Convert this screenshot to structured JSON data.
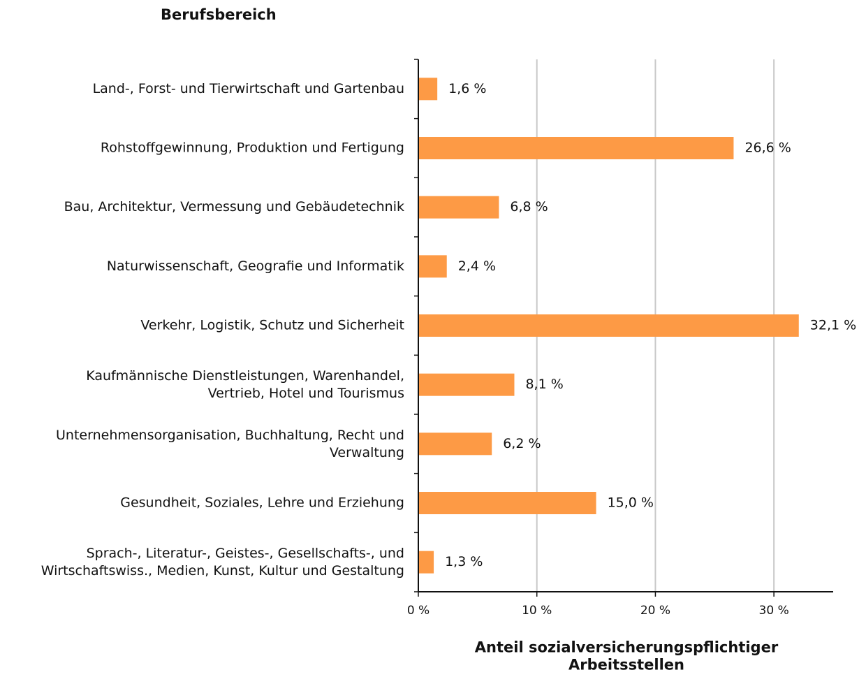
{
  "chart_data": {
    "type": "bar",
    "orientation": "horizontal",
    "title": "Berufsbereich",
    "x_label": "Anteil sozialversicherungspflichtiger\nArbeitsstellen",
    "categories": [
      "Land-, Forst- und Tierwirtschaft und Gartenbau",
      "Rohstoffgewinnung, Produktion und Fertigung",
      "Bau, Architektur, Vermessung und Gebäudetechnik",
      "Naturwissenschaft, Geografie und Informatik",
      "Verkehr, Logistik, Schutz und Sicherheit",
      "Kaufmännische Dienstleistungen, Warenhandel,\nVertrieb, Hotel und Tourismus",
      "Unternehmensorganisation, Buchhaltung, Recht und\nVerwaltung",
      "Gesundheit, Soziales, Lehre und Erziehung",
      "Sprach-, Literatur-, Geistes-, Gesellschafts-, und\nWirtschaftswiss., Medien, Kunst, Kultur und Gestaltung"
    ],
    "values": [
      1.6,
      26.6,
      6.8,
      2.4,
      32.1,
      8.1,
      6.2,
      15.0,
      1.3
    ],
    "value_labels": [
      "1,6 %",
      "26,6 %",
      "6,8 %",
      "2,4 %",
      "32,1 %",
      "8,1 %",
      "6,2 %",
      "15,0 %",
      "1,3 %"
    ],
    "color": "#fd9a45",
    "xlim": [
      0,
      35
    ],
    "xticks": [
      {
        "value": 0,
        "label": "0 %"
      },
      {
        "value": 10,
        "label": "10 %"
      },
      {
        "value": 20,
        "label": "20 %"
      },
      {
        "value": 30,
        "label": "30 %"
      }
    ],
    "grid": true
  }
}
